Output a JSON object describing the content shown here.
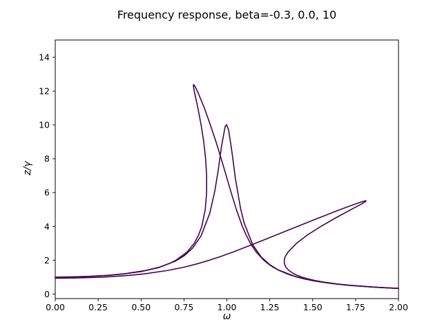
{
  "chart_data": {
    "type": "line",
    "title": "Frequency response, beta=-0.3, 0.0, 10",
    "xlabel": "ω",
    "ylabel": "z/γ",
    "xlim": [
      0,
      2
    ],
    "ylim": [
      -0.27,
      15.02
    ],
    "x_ticks": [
      0,
      0.25,
      0.5,
      0.75,
      1.0,
      1.25,
      1.5,
      1.75,
      2.0
    ],
    "x_tick_labels": [
      "0.00",
      "0.25",
      "0.50",
      "0.75",
      "1.00",
      "1.25",
      "1.50",
      "1.75",
      "2.00"
    ],
    "y_ticks": [
      0,
      2,
      4,
      6,
      8,
      10,
      12,
      14
    ],
    "y_tick_labels": [
      "0",
      "2",
      "4",
      "6",
      "8",
      "10",
      "12",
      "14"
    ],
    "grid": false,
    "legend": null,
    "line_color": "#440154",
    "axis_color": "#000000",
    "background_color": "#ffffff",
    "line_width": 1.6,
    "series": [
      {
        "name": "beta=-0.3",
        "peak": [
          0.806,
          12.38
        ],
        "points": [
          [
            0,
            1.002
          ],
          [
            0.1,
            1.01
          ],
          [
            0.213,
            1.05
          ],
          [
            0.298,
            1.1
          ],
          [
            0.406,
            1.2
          ],
          [
            0.532,
            1.4
          ],
          [
            0.61,
            1.6
          ],
          [
            0.664,
            1.8
          ],
          [
            0.704,
            2.0
          ],
          [
            0.77,
            2.5
          ],
          [
            0.81,
            3.0
          ],
          [
            0.836,
            3.5
          ],
          [
            0.854,
            4.0
          ],
          [
            0.874,
            5.0
          ],
          [
            0.882,
            6.0
          ],
          [
            0.882,
            7.0
          ],
          [
            0.876,
            8.0
          ],
          [
            0.865,
            9.0
          ],
          [
            0.85,
            10.0
          ],
          [
            0.831,
            11.0
          ],
          [
            0.81,
            12.0
          ],
          [
            0.805,
            12.3
          ],
          [
            0.806,
            12.38
          ],
          [
            0.813,
            12.3
          ],
          [
            0.828,
            12.0
          ],
          [
            0.869,
            11.0
          ],
          [
            0.904,
            10.0
          ],
          [
            0.937,
            9.0
          ],
          [
            0.967,
            8.0
          ],
          [
            0.996,
            7.0
          ],
          [
            1.025,
            6.0
          ],
          [
            1.055,
            5.0
          ],
          [
            1.09,
            4.0
          ],
          [
            1.112,
            3.5
          ],
          [
            1.137,
            3.0
          ],
          [
            1.17,
            2.5
          ],
          [
            1.215,
            2.0
          ],
          [
            1.239,
            1.8
          ],
          [
            1.267,
            1.6
          ],
          [
            1.303,
            1.4
          ],
          [
            1.349,
            1.2
          ],
          [
            1.377,
            1.1
          ],
          [
            1.41,
            1.0
          ],
          [
            1.449,
            0.9
          ],
          [
            1.497,
            0.8
          ],
          [
            1.555,
            0.7
          ],
          [
            1.63,
            0.6
          ],
          [
            1.73,
            0.5
          ],
          [
            1.869,
            0.4
          ],
          [
            1.962,
            0.35
          ],
          [
            2.0,
            0.333
          ]
        ]
      },
      {
        "name": "beta=0.0",
        "peak": [
          0.998,
          10.01
        ],
        "points": [
          [
            0,
            1.0
          ],
          [
            0.1,
            1.01
          ],
          [
            0.2,
            1.041
          ],
          [
            0.3,
            1.098
          ],
          [
            0.4,
            1.189
          ],
          [
            0.5,
            1.33
          ],
          [
            0.6,
            1.556
          ],
          [
            0.7,
            1.943
          ],
          [
            0.75,
            2.253
          ],
          [
            0.8,
            2.712
          ],
          [
            0.85,
            3.446
          ],
          [
            0.9,
            4.757
          ],
          [
            0.93,
            6.097
          ],
          [
            0.95,
            7.346
          ],
          [
            0.97,
            8.804
          ],
          [
            0.99,
            9.903
          ],
          [
            0.998,
            10.013
          ],
          [
            1.01,
            9.71
          ],
          [
            1.03,
            8.357
          ],
          [
            1.05,
            6.815
          ],
          [
            1.08,
            5.041
          ],
          [
            1.1,
            4.218
          ],
          [
            1.15,
            2.921
          ],
          [
            1.2,
            2.193
          ],
          [
            1.25,
            1.735
          ],
          [
            1.3,
            1.424
          ],
          [
            1.4,
            1.031
          ],
          [
            1.5,
            0.794
          ],
          [
            1.6,
            0.638
          ],
          [
            1.7,
            0.527
          ],
          [
            1.8,
            0.445
          ],
          [
            1.9,
            0.382
          ],
          [
            2.0,
            0.333
          ]
        ]
      },
      {
        "name": "beta=10",
        "peak": [
          1.811,
          5.52
        ],
        "points": [
          [
            0,
            0.938
          ],
          [
            0.1,
            0.946
          ],
          [
            0.123,
            0.95
          ],
          [
            0.275,
            1.0
          ],
          [
            0.427,
            1.1
          ],
          [
            0.526,
            1.2
          ],
          [
            0.66,
            1.4
          ],
          [
            0.756,
            1.6
          ],
          [
            0.833,
            1.8
          ],
          [
            0.899,
            2.0
          ],
          [
            0.959,
            2.2
          ],
          [
            1.04,
            2.5
          ],
          [
            1.167,
            3.0
          ],
          [
            1.29,
            3.5
          ],
          [
            1.412,
            4.0
          ],
          [
            1.536,
            4.5
          ],
          [
            1.662,
            5.0
          ],
          [
            1.742,
            5.3
          ],
          [
            1.785,
            5.45
          ],
          [
            1.811,
            5.52
          ],
          [
            1.806,
            5.45
          ],
          [
            1.78,
            5.3
          ],
          [
            1.725,
            5.0
          ],
          [
            1.634,
            4.5
          ],
          [
            1.548,
            4.0
          ],
          [
            1.471,
            3.5
          ],
          [
            1.406,
            3.0
          ],
          [
            1.358,
            2.5
          ],
          [
            1.339,
            2.2
          ],
          [
            1.335,
            2.0
          ],
          [
            1.335,
            1.8
          ],
          [
            1.343,
            1.6
          ],
          [
            1.36,
            1.4
          ],
          [
            1.389,
            1.2
          ],
          [
            1.41,
            1.1
          ],
          [
            1.437,
            1.0
          ],
          [
            1.47,
            0.9
          ],
          [
            1.513,
            0.8
          ],
          [
            1.567,
            0.7
          ],
          [
            1.639,
            0.6
          ],
          [
            1.735,
            0.5
          ],
          [
            1.872,
            0.4
          ],
          [
            1.965,
            0.35
          ],
          [
            2.0,
            0.334
          ]
        ]
      }
    ]
  }
}
